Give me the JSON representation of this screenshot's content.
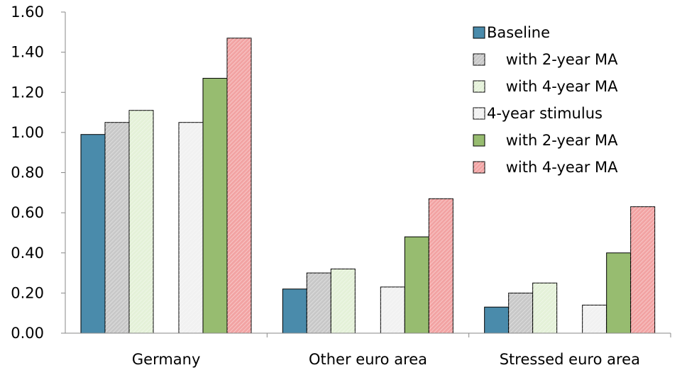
{
  "chart_data": {
    "type": "bar",
    "categories": [
      "Germany",
      "Other euro area",
      "Stressed euro area"
    ],
    "series": [
      {
        "name": "Baseline",
        "values": [
          0.99,
          0.22,
          0.13
        ],
        "color": "#4a8bab",
        "pattern": "solid"
      },
      {
        "name": "    with 2-year MA",
        "values": [
          1.05,
          0.3,
          0.2
        ],
        "color": "#c8c8c8",
        "pattern": "diag"
      },
      {
        "name": "    with 4-year MA",
        "values": [
          1.11,
          0.32,
          0.25
        ],
        "color": "#e4f1d8",
        "pattern": "diag"
      },
      {
        "name": "4-year stimulus",
        "values": [
          1.05,
          0.23,
          0.14
        ],
        "color": "#f1f1f1",
        "pattern": "diag"
      },
      {
        "name": "    with 2-year MA",
        "values": [
          1.27,
          0.48,
          0.4
        ],
        "color": "#97bc70",
        "pattern": "solid"
      },
      {
        "name": "    with 4-year MA",
        "values": [
          1.47,
          0.67,
          0.63
        ],
        "color": "#f2a3a3",
        "pattern": "diag"
      }
    ],
    "ylim": [
      0,
      1.6
    ],
    "yticks": [
      "0.00",
      "0.20",
      "0.40",
      "0.60",
      "0.80",
      "1.00",
      "1.20",
      "1.40",
      "1.60"
    ],
    "legend_position": "top-right",
    "grid": false
  }
}
